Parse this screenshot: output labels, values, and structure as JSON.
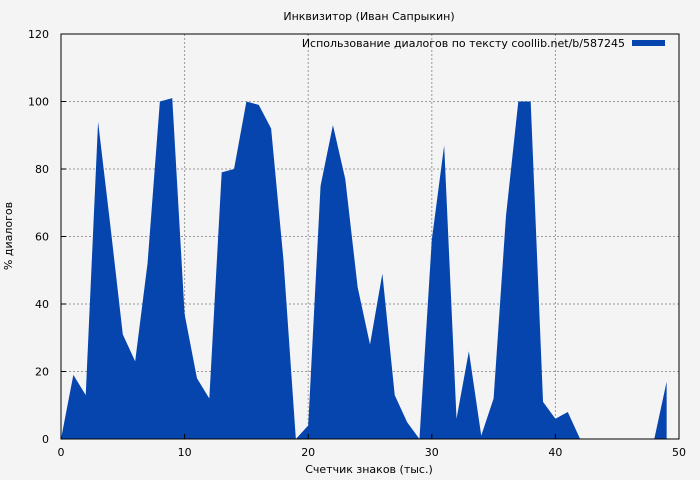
{
  "chart_data": {
    "type": "area",
    "title": "Инквизитор (Иван Сапрыкин)",
    "xlabel": "Счетчик знаков (тыс.)",
    "ylabel": "% диалогов",
    "xlim": [
      0,
      50
    ],
    "ylim": [
      0,
      120
    ],
    "xticks": [
      0,
      10,
      20,
      30,
      40,
      50
    ],
    "yticks": [
      0,
      20,
      40,
      60,
      80,
      100,
      120
    ],
    "grid": true,
    "legend_position": "top-right",
    "series": [
      {
        "name": "Использование диалогов по тексту coollib.net/b/587245",
        "color": "#0645ad",
        "x": [
          0,
          1,
          2,
          3,
          4,
          5,
          6,
          7,
          8,
          9,
          10,
          11,
          12,
          13,
          14,
          15,
          16,
          17,
          18,
          19,
          20,
          21,
          22,
          23,
          24,
          25,
          26,
          27,
          28,
          29,
          30,
          31,
          32,
          33,
          34,
          35,
          36,
          37,
          38,
          39,
          40,
          41,
          42,
          43,
          44,
          45,
          46,
          47,
          48,
          49
        ],
        "values": [
          0,
          19,
          13,
          94,
          63,
          31,
          23,
          52,
          100,
          101,
          37,
          18,
          12,
          79,
          80,
          100,
          99,
          92,
          53,
          0,
          4,
          75,
          93,
          77,
          45,
          28,
          49,
          13,
          5,
          0,
          59,
          87,
          6,
          26,
          1,
          12,
          66,
          100,
          100,
          11,
          6,
          8,
          0,
          0,
          0,
          0,
          0,
          0,
          0,
          17
        ]
      }
    ]
  }
}
